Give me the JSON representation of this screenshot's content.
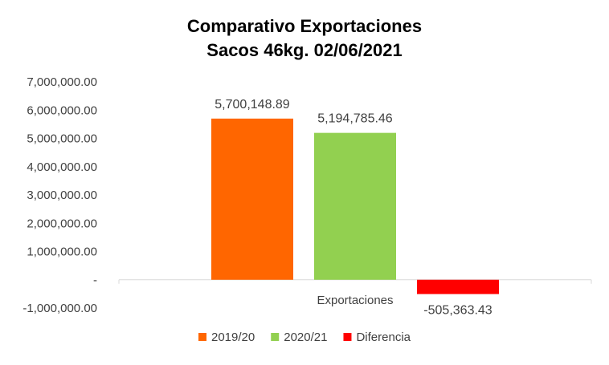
{
  "chart_data": {
    "type": "bar",
    "title": [
      "Comparativo  Exportaciones",
      "Sacos 46kg. 02/06/2021"
    ],
    "categories": [
      "Exportaciones"
    ],
    "series": [
      {
        "name": "2019/20",
        "values": [
          5700148.89
        ],
        "label": "5,700,148.89",
        "color": "#FF6600"
      },
      {
        "name": "2020/21",
        "values": [
          5194785.46
        ],
        "label": "5,194,785.46",
        "color": "#92D050"
      },
      {
        "name": "Diferencia",
        "values": [
          -505363.43
        ],
        "label": "-505,363.43",
        "color": "#FF0000"
      }
    ],
    "ylim": [
      -1000000,
      7000000
    ],
    "yticks": [
      {
        "value": 7000000,
        "label": "7,000,000.00"
      },
      {
        "value": 6000000,
        "label": "6,000,000.00"
      },
      {
        "value": 5000000,
        "label": "5,000,000.00"
      },
      {
        "value": 4000000,
        "label": "4,000,000.00"
      },
      {
        "value": 3000000,
        "label": "3,000,000.00"
      },
      {
        "value": 2000000,
        "label": "2,000,000.00"
      },
      {
        "value": 1000000,
        "label": "1,000,000.00"
      },
      {
        "value": 0,
        "label": "-"
      },
      {
        "value": -1000000,
        "label": "-1,000,000.00"
      }
    ],
    "xlabel": "",
    "ylabel": "",
    "grid": false,
    "legend_position": "bottom"
  }
}
